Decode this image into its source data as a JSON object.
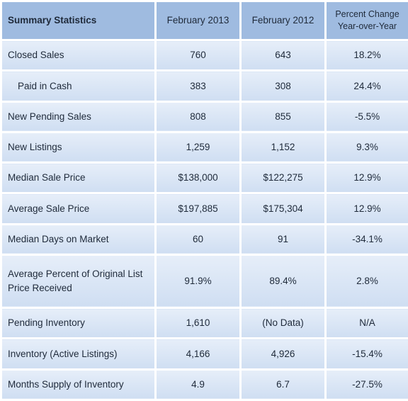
{
  "table": {
    "header": [
      "Summary Statistics",
      "February 2013",
      "February 2012",
      "Percent Change Year-over-Year"
    ],
    "rows": [
      [
        "Closed Sales",
        "760",
        "643",
        "18.2%"
      ],
      [
        "Paid in Cash",
        "383",
        "308",
        "24.4%"
      ],
      [
        "New Pending Sales",
        "808",
        "855",
        "-5.5%"
      ],
      [
        "New Listings",
        "1,259",
        "1,152",
        "9.3%"
      ],
      [
        "Median Sale Price",
        "$138,000",
        "$122,275",
        "12.9%"
      ],
      [
        "Average Sale Price",
        "$197,885",
        "$175,304",
        "12.9%"
      ],
      [
        "Median Days on Market",
        "60",
        "91",
        "-34.1%"
      ],
      [
        "Average Percent of Original List Price Received",
        "91.9%",
        "89.4%",
        "2.8%"
      ],
      [
        "Pending Inventory",
        "1,610",
        "(No Data)",
        "N/A"
      ],
      [
        "Inventory (Active Listings)",
        "4,166",
        "4,926",
        "-15.4%"
      ],
      [
        "Months Supply of Inventory",
        "4.9",
        "6.7",
        "-27.5%"
      ]
    ]
  }
}
